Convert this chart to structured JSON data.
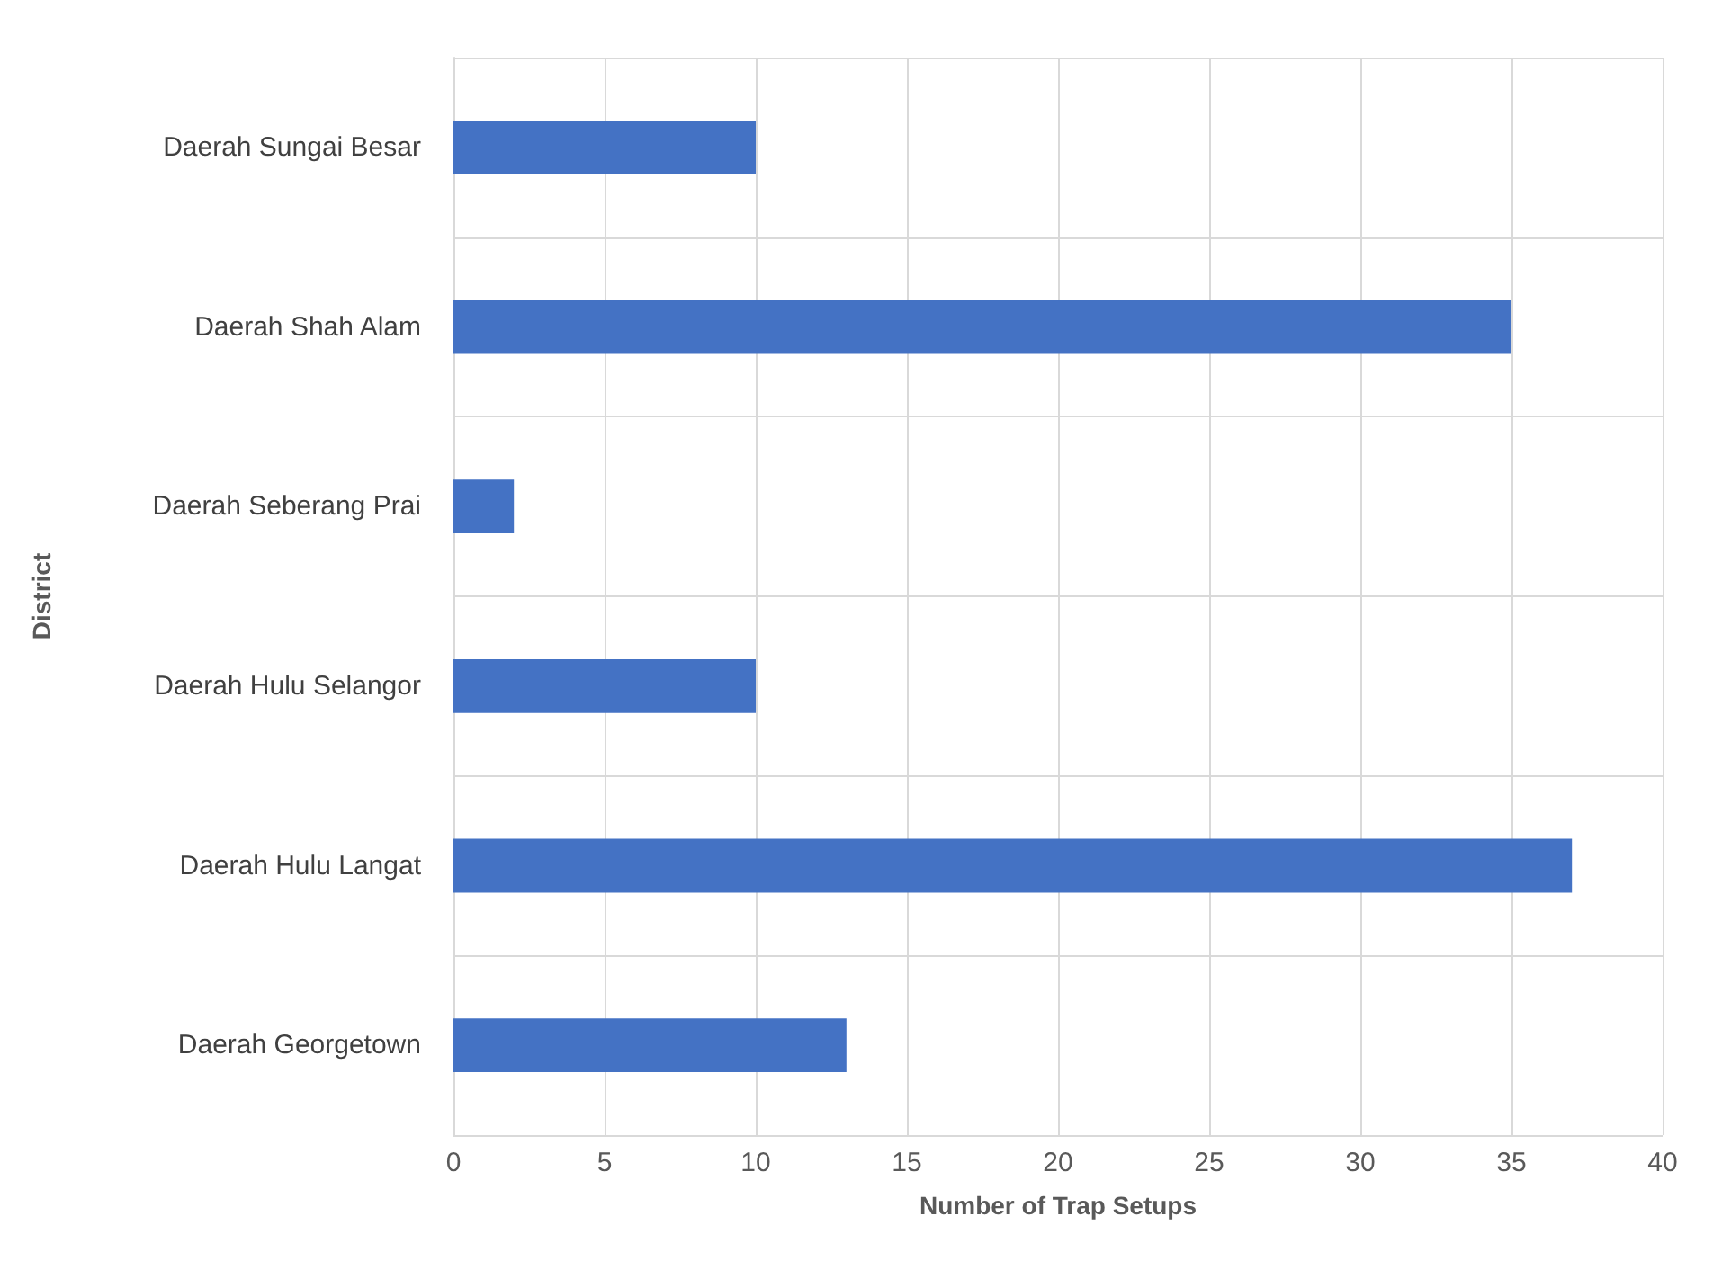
{
  "chart_data": {
    "type": "bar",
    "orientation": "horizontal",
    "xlabel": "Number of Trap Setups",
    "ylabel": "District",
    "categories": [
      "Daerah Sungai Besar",
      "Daerah Shah Alam",
      "Daerah Seberang Prai",
      "Daerah Hulu Selangor",
      "Daerah Hulu Langat",
      "Daerah Georgetown"
    ],
    "values": [
      10,
      35,
      2,
      10,
      37,
      13
    ],
    "color": "#4472c4",
    "xlim": [
      0,
      40
    ],
    "xticks": [
      0,
      5,
      10,
      15,
      20,
      25,
      30,
      35,
      40
    ],
    "grid": true
  }
}
